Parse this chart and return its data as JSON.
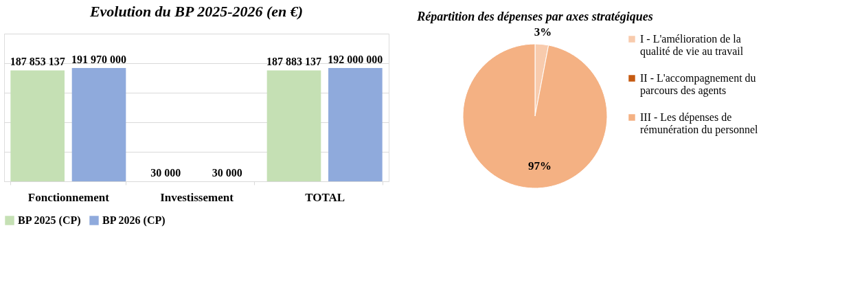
{
  "chart_data": [
    {
      "type": "bar",
      "title": "Evolution du BP 2025-2026 (en €)",
      "categories": [
        "Fonctionnement",
        "Investissement",
        "TOTAL"
      ],
      "series": [
        {
          "name": "BP 2025 (CP)",
          "color": "#c5e0b4",
          "values": [
            187853137,
            30000,
            187883137
          ]
        },
        {
          "name": "BP 2026 (CP)",
          "color": "#8faadc",
          "values": [
            191970000,
            30000,
            192000000
          ]
        }
      ],
      "ylim": [
        0,
        250000000
      ],
      "yticks": [
        {
          "value": 0,
          "label": null
        },
        {
          "value": 50000000,
          "label": null
        },
        {
          "value": 100000000,
          "label": null
        },
        {
          "value": 150000000,
          "label": null
        },
        {
          "value": 200000000,
          "label": null
        },
        {
          "value": 250000000,
          "label": null
        }
      ],
      "tick_labels": "x",
      "grid": "y",
      "legend": "bottom",
      "data_labels": true
    },
    {
      "type": "pie",
      "title": "Répartition des dépenses par axes stratégiques",
      "categories": [
        "I - L'amélioration de la qualité de vie au travail",
        "II - L'accompagnement du parcours des agents",
        "III - Les dépenses de rémunération du personnel"
      ],
      "values": [
        3,
        0,
        97
      ],
      "colors": [
        "#f8cbad",
        "#c55a11",
        "#f4b183"
      ],
      "value_labels": [
        "3%",
        null,
        "97%"
      ],
      "legend": "right"
    }
  ]
}
